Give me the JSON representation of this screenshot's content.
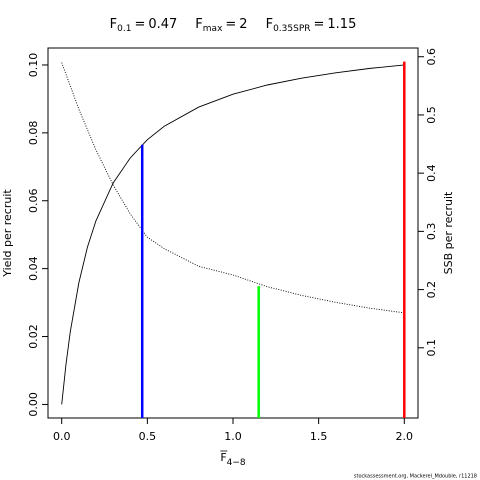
{
  "chart_data": {
    "type": "line",
    "equals": "=",
    "reference_lines": [
      {
        "label": "F",
        "subscript": "max",
        "value": 2,
        "color": "#ff0000",
        "top": 0.101,
        "axis": "y"
      },
      {
        "label": "F",
        "subscript": "0.1",
        "value": 0.47,
        "color": "#0000ff",
        "top": 0.0765,
        "axis": "y"
      },
      {
        "label": "F",
        "subscript": "0.35SPR",
        "value": 1.15,
        "color": "#00ff00",
        "top": 0.206,
        "axis": "y2"
      }
    ],
    "xlabel": {
      "text": "F",
      "subscript": "4−8"
    },
    "ylabel": "Yield per recruit",
    "y2label": "SSB per recruit",
    "caption": "stockassessment.org, Mackerel_Mdouble, r11218",
    "series": [
      {
        "name": "Yield",
        "color": "#000000",
        "style": "solid",
        "axis": "y",
        "x": [
          0,
          0.025,
          0.05,
          0.1,
          0.15,
          0.2,
          0.3,
          0.4,
          0.5,
          0.6,
          0.8,
          1.0,
          1.2,
          1.4,
          1.6,
          1.8,
          2.0
        ],
        "values": [
          0,
          0.0118,
          0.0214,
          0.0358,
          0.0463,
          0.0541,
          0.0652,
          0.0726,
          0.078,
          0.082,
          0.0876,
          0.0914,
          0.0941,
          0.0961,
          0.0977,
          0.099,
          0.1
        ]
      },
      {
        "name": "SSB",
        "color": "#000000",
        "style": "dotted",
        "axis": "y2",
        "x": [
          0,
          0.1,
          0.2,
          0.3,
          0.4,
          0.5,
          0.6,
          0.8,
          1.0,
          1.2,
          1.4,
          1.6,
          1.8,
          2.0
        ],
        "values": [
          0.59,
          0.51,
          0.44,
          0.38,
          0.33,
          0.29,
          0.27,
          0.24,
          0.225,
          0.205,
          0.19,
          0.178,
          0.168,
          0.16
        ]
      }
    ],
    "xlim": [
      -0.08,
      2.08
    ],
    "xticks": [
      {
        "value": 0,
        "label": "0.0"
      },
      0.5,
      {
        "value": 1,
        "label": "1.0"
      },
      1.5,
      {
        "value": 2,
        "label": "2.0"
      }
    ],
    "ylim": [
      -0.004,
      0.105
    ],
    "yticks": [
      {
        "value": 0,
        "label": "0.00"
      },
      0.02,
      0.04,
      0.06,
      0.08,
      {
        "value": 0.1,
        "label": "0.10"
      }
    ],
    "y2lim": [
      -0.0206,
      0.615
    ],
    "y2ticks": [
      0.1,
      0.2,
      0.3,
      0.4,
      0.5,
      0.6
    ]
  }
}
